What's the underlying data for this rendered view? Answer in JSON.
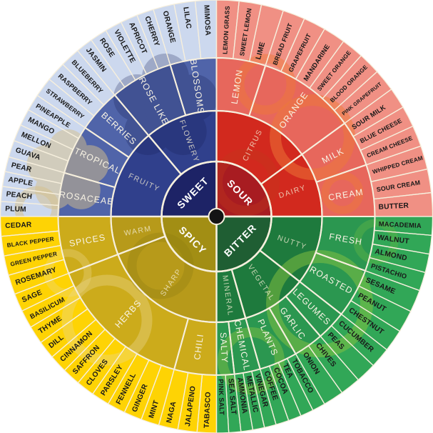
{
  "background": "#ffffff",
  "wheel": {
    "line_color": "#f6efdd",
    "center_dot_color": "#141414",
    "label_colors": {
      "core": "#ffffff",
      "level2": "#f3ecd2",
      "level3": "#f8f3e4",
      "level4": "#191919"
    },
    "quadrants": [
      {
        "name": "SWEET",
        "start": 180,
        "colors": {
          "core": "#1d2366",
          "level2": "#30408c",
          "level3": "#5064a9",
          "level4": "#ccd8ee",
          "deco1": "#171e55",
          "deco2": "#d6c08a"
        },
        "children": [
          {
            "label": "FRUITY",
            "groups": [
              {
                "label": "ROSACEAE",
                "span": 16,
                "items": [
                  "PLUM",
                  "PEACH",
                  "APPLE",
                  "PEAR"
                ]
              },
              {
                "label": "TROPICAL",
                "span": 18,
                "items": [
                  "GUAVA",
                  "MELLON",
                  "MANGO",
                  "PINEAPPLE"
                ]
              },
              {
                "label": "BERRIES",
                "span": 16,
                "items": [
                  "STRAWBERRY",
                  "RASPBERRY",
                  "BLUEBERRY"
                ]
              }
            ]
          },
          {
            "label": "FLOWERY",
            "groups": [
              {
                "label": "ROSE LIKE",
                "span": 23,
                "items": [
                  "JASMIN",
                  "ROSE",
                  "VIOLETTE",
                  "APRICOT",
                  "CHERRY"
                ]
              },
              {
                "label": "BLOSSOMS",
                "span": 17,
                "items": [
                  "ORANGE",
                  "LILAC",
                  "MIMOSA"
                ]
              }
            ]
          }
        ]
      },
      {
        "name": "SOUR",
        "start": 270,
        "colors": {
          "core": "#a81c21",
          "level2": "#d2291e",
          "level3": "#e7675c",
          "level4": "#f09084",
          "deco1": "#ee7a38",
          "deco2": "#c23a1e"
        },
        "children": [
          {
            "label": "CITRUS",
            "groups": [
              {
                "label": "LEMON",
                "span": 18,
                "items": [
                  "LEMON GRASS",
                  "SWEET LEMON",
                  "LIME"
                ]
              },
              {
                "label": "ORANGE",
                "span": 36,
                "items": [
                  "BREAD FRUIT",
                  "GRAPEFRUIT",
                  "MANDARINE",
                  "SWEET ORANGE",
                  "BLOOD ORANGE",
                  "PINK GRAPEFRUIT"
                ]
              }
            ]
          },
          {
            "label": "DAIRY",
            "groups": [
              {
                "label": "MILK",
                "span": 17,
                "items": [
                  "SOUR MILK",
                  "BLUE CHEESE",
                  "CREAM CHEESE"
                ]
              },
              {
                "label": "CREAM",
                "span": 19,
                "items": [
                  "WHIPPED CREAM",
                  "SOUR CREAM",
                  "BUTTER"
                ]
              }
            ]
          }
        ]
      },
      {
        "name": "BITTER",
        "start": 0,
        "colors": {
          "core": "#1f5e33",
          "level2": "#1e7a3d",
          "level3": "#2b9750",
          "level4": "#31a757",
          "deco1": "#87c440",
          "deco2": "#5fb344"
        },
        "children": [
          {
            "label": "NUTTY",
            "groups": [
              {
                "label": "FRESH",
                "span": 20,
                "items": [
                  "MACADEMIA",
                  "WALNUT",
                  "ALMOND",
                  "PISTACHIO"
                ]
              },
              {
                "label": "ROASTED",
                "span": 18,
                "items": [
                  "SESAME",
                  "PEANUT",
                  "CHESTNUT"
                ]
              }
            ]
          },
          {
            "label": "VEGETAL",
            "groups": [
              {
                "label": "LEGUMES",
                "span": 11,
                "items": [
                  "CUCUMBER",
                  "PEAS"
                ]
              },
              {
                "label": "GARLIC",
                "span": 11,
                "items": [
                  "CHIVES",
                  "ONION"
                ]
              },
              {
                "label": "PLANTS",
                "span": 14,
                "items": [
                  "TOBACCO",
                  "TEA",
                  "COCOA",
                  "COFFEE"
                ]
              }
            ]
          },
          {
            "label": "MINERAL",
            "groups": [
              {
                "label": "CHEMICAL",
                "span": 9.5,
                "items": [
                  "VINEGAR",
                  "METALLIC",
                  "AMMONIA"
                ]
              },
              {
                "label": "SALTY",
                "span": 6.5,
                "items": [
                  "SEA SALT",
                  "PINK SALT"
                ]
              }
            ]
          }
        ]
      },
      {
        "name": "SPICY",
        "start": 90,
        "colors": {
          "core": "#a28e14",
          "level2": "#b79a1a",
          "level3": "#ccab1b",
          "level4": "#fed304",
          "deco1": "#ecd88c",
          "deco2": "#8c7b10"
        },
        "children": [
          {
            "label": "SHARP",
            "groups": [
              {
                "label": "CHILI",
                "span": 15.5,
                "items": [
                  "TABASCO",
                  "JALAPENO",
                  "NAGA"
                ]
              },
              {
                "label": "HERBS",
                "span": 53.5,
                "items": [
                  "MINT",
                  "GINGER",
                  "FENNELL",
                  "PARSLEY",
                  "CLOVES",
                  "SAFFRON",
                  "CINNAMON",
                  "DILL",
                  "THYME",
                  "BASILICUM",
                  "SAGE"
                ]
              }
            ]
          },
          {
            "label": "WARM",
            "groups": [
              {
                "label": "SPICES",
                "span": 21,
                "items": [
                  "ROSEMARY",
                  "GREEN PEPPER",
                  "BLACK PEPPER",
                  "CEDAR"
                ]
              }
            ]
          }
        ]
      }
    ]
  }
}
